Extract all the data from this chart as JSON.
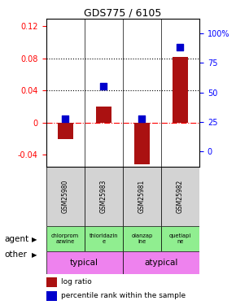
{
  "title": "GDS775 / 6105",
  "samples": [
    "GSM25980",
    "GSM25983",
    "GSM25981",
    "GSM25982"
  ],
  "log_ratios": [
    -0.021,
    0.02,
    -0.052,
    0.082
  ],
  "percentile_ranks": [
    28,
    55,
    28,
    88
  ],
  "agents": [
    "chlorprom\nazwine",
    "thioridazin\ne",
    "olanzap\nine",
    "quetiapi\nne"
  ],
  "bar_color": "#aa1111",
  "dot_color": "#0000cc",
  "ylim_left": [
    -0.055,
    0.13
  ],
  "yticks_left": [
    -0.04,
    0.0,
    0.04,
    0.08,
    0.12
  ],
  "ytick_labels_left": [
    "-0.04",
    "0",
    "0.04",
    "0.08",
    "0.12"
  ],
  "ylim_right": [
    -12.5,
    112.5
  ],
  "yticks_right": [
    0,
    25,
    50,
    75,
    100
  ],
  "ytick_labels_right": [
    "0",
    "25",
    "50",
    "75",
    "100%"
  ],
  "left_label_color": "red",
  "right_label_color": "blue",
  "bar_width": 0.4,
  "dot_size": 28,
  "agent_row_label": "agent",
  "other_row_label": "other",
  "typical_label": "typical",
  "atypical_label": "atypical",
  "legend_bar_label": "log ratio",
  "legend_dot_label": "percentile rank within the sample",
  "sample_box_color": "#d3d3d3",
  "agent_green": "#90ee90",
  "other_magenta": "#ee82ee"
}
